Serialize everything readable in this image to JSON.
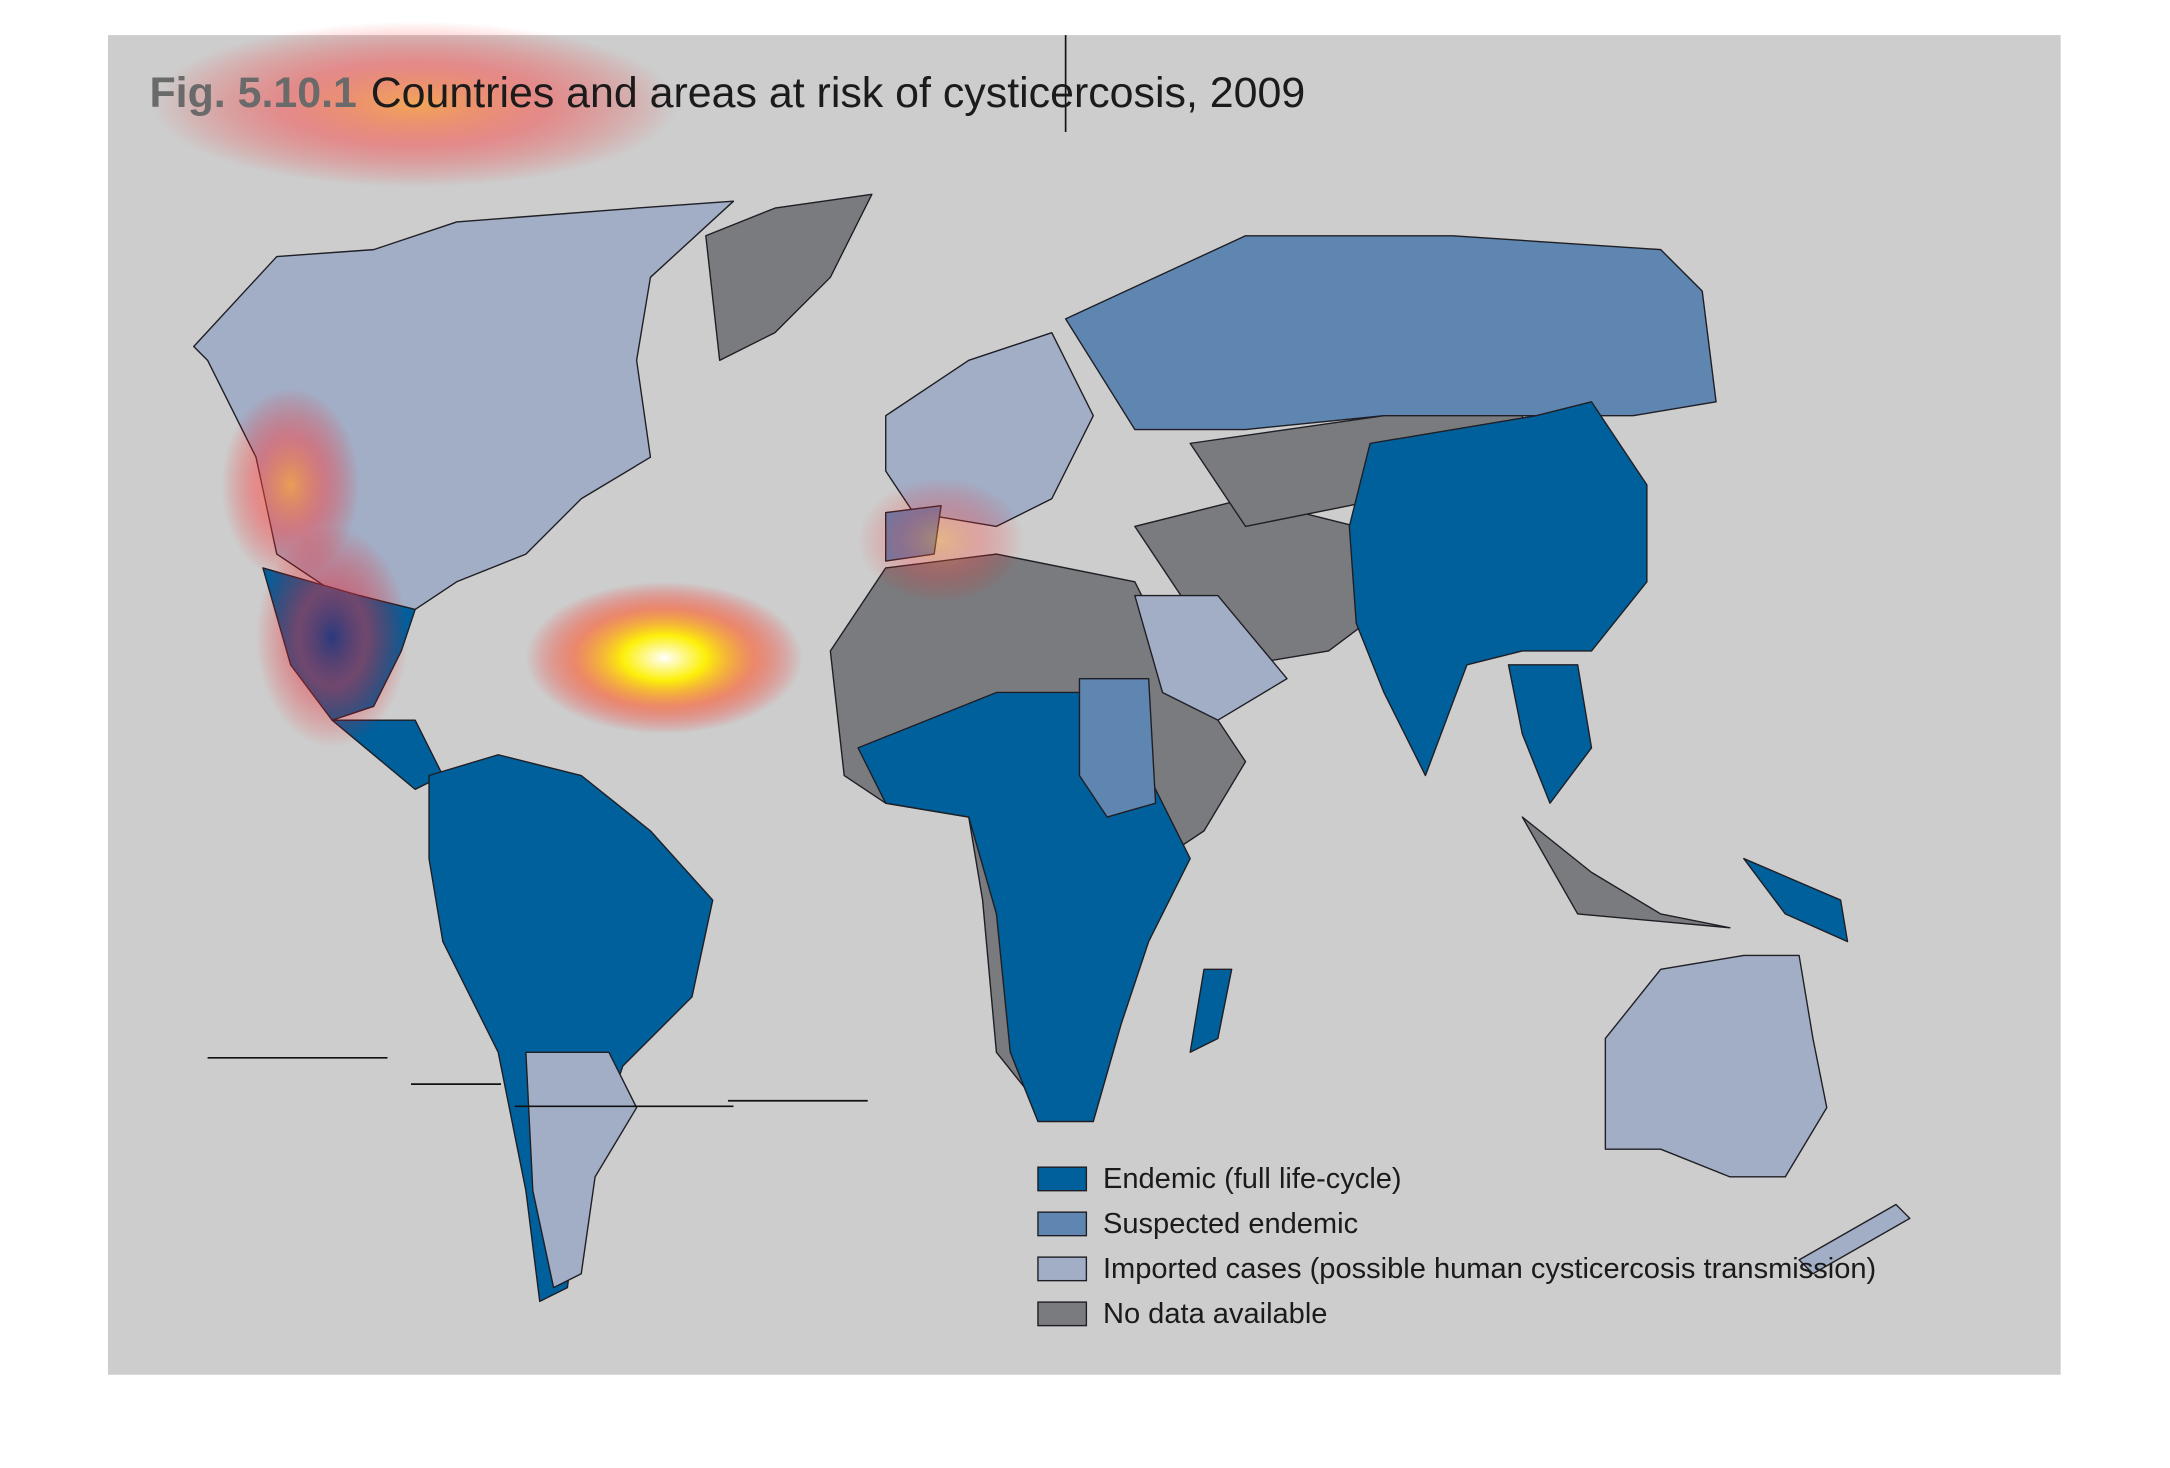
{
  "title": {
    "label": "Fig. 5.10.1",
    "text": "Countries and areas at risk of cysticercosis, 2009"
  },
  "legend": {
    "items": [
      {
        "label": "Endemic (full life-cycle)",
        "color": "#00609c"
      },
      {
        "label": "Suspected endemic",
        "color": "#5f85b1"
      },
      {
        "label": "Imported cases (possible human cysticercosis transmission)",
        "color": "#a2aec6"
      },
      {
        "label": "No data available",
        "color": "#7a7b7e"
      }
    ]
  }
}
